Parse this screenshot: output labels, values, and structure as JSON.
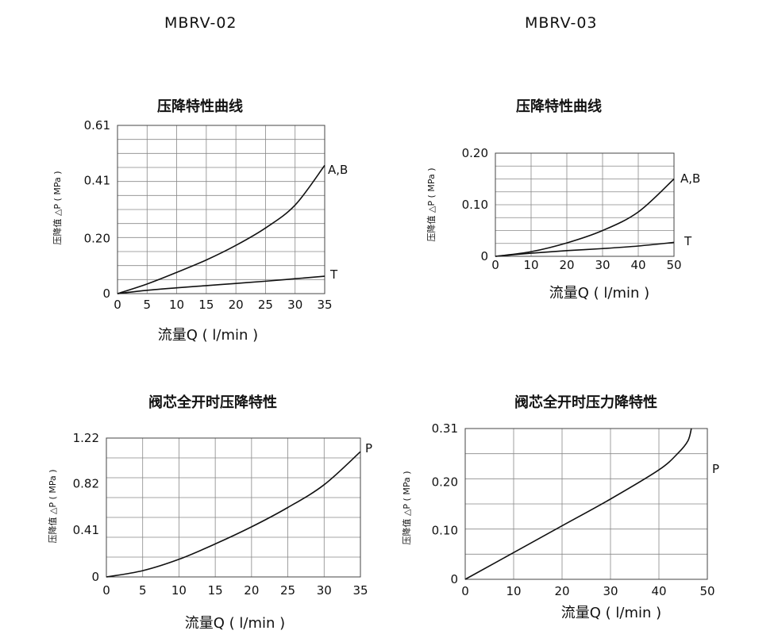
{
  "models": {
    "left": "MBRV-02",
    "right": "MBRV-03"
  },
  "chart_data": [
    {
      "type": "line",
      "title": "压降特性曲线",
      "xlabel": "流量Q ( l/min )",
      "ylabel": "压降值 △P ( MPa )",
      "xlim": [
        0,
        35
      ],
      "ylim": [
        0,
        0.61
      ],
      "x_ticks": [
        "0",
        "5",
        "10",
        "15",
        "20",
        "25",
        "30",
        "35"
      ],
      "y_ticks": [
        {
          "value": 0,
          "label": "0"
        },
        {
          "value": 0.2,
          "label": "0.20"
        },
        {
          "value": 0.41,
          "label": "0.41"
        },
        {
          "value": 0.61,
          "label": "0.61"
        }
      ],
      "grid": true,
      "series": [
        {
          "name": "A,B",
          "x": [
            0,
            5,
            10,
            15,
            20,
            25,
            30,
            35
          ],
          "y": [
            0,
            0.035,
            0.077,
            0.122,
            0.175,
            0.238,
            0.321,
            0.465
          ]
        },
        {
          "name": "T",
          "x": [
            0,
            5,
            10,
            15,
            20,
            25,
            30,
            35
          ],
          "y": [
            0,
            0.012,
            0.021,
            0.029,
            0.037,
            0.045,
            0.054,
            0.063
          ]
        }
      ]
    },
    {
      "type": "line",
      "title": "压降特性曲线",
      "xlabel": "流量Q ( l/min )",
      "ylabel": "压降值 △P ( MPa )",
      "xlim": [
        0,
        50
      ],
      "ylim": [
        0,
        0.2
      ],
      "x_ticks": [
        "0",
        "10",
        "20",
        "30",
        "40",
        "50"
      ],
      "y_ticks": [
        {
          "value": 0,
          "label": "0"
        },
        {
          "value": 0.1,
          "label": "0.10"
        },
        {
          "value": 0.2,
          "label": "0.20"
        }
      ],
      "grid": true,
      "series": [
        {
          "name": "A,B",
          "x": [
            0,
            10,
            20,
            30,
            40,
            50
          ],
          "y": [
            0,
            0.009,
            0.026,
            0.05,
            0.086,
            0.15
          ]
        },
        {
          "name": "T",
          "x": [
            0,
            10,
            20,
            30,
            40,
            50
          ],
          "y": [
            0,
            0.006,
            0.011,
            0.015,
            0.02,
            0.027
          ]
        }
      ]
    },
    {
      "type": "line",
      "title": "阀芯全开时压降特性",
      "xlabel": "流量Q ( l/min )",
      "ylabel": "压降值 △P ( MPa )",
      "xlim": [
        0,
        35
      ],
      "ylim": [
        0,
        1.22
      ],
      "x_ticks": [
        "0",
        "5",
        "10",
        "15",
        "20",
        "25",
        "30",
        "35"
      ],
      "y_ticks": [
        {
          "value": 0,
          "label": "0"
        },
        {
          "value": 0.41,
          "label": "0.41"
        },
        {
          "value": 0.82,
          "label": "0.82"
        },
        {
          "value": 1.22,
          "label": "1.22"
        }
      ],
      "grid": true,
      "series": [
        {
          "name": "P",
          "x": [
            0,
            5,
            10,
            15,
            20,
            25,
            30,
            35
          ],
          "y": [
            0,
            0.055,
            0.155,
            0.29,
            0.44,
            0.61,
            0.81,
            1.1
          ]
        }
      ]
    },
    {
      "type": "line",
      "title": "阀芯全开时压力降特性",
      "xlabel": "流量Q ( l/min )",
      "ylabel": "压降值 △P ( MPa )",
      "xlim": [
        0,
        50
      ],
      "ylim": [
        0,
        0.31
      ],
      "x_ticks": [
        "0",
        "10",
        "20",
        "30",
        "40",
        "50"
      ],
      "y_ticks": [
        {
          "value": 0,
          "label": "0"
        },
        {
          "value": 0.1,
          "label": "0.10"
        },
        {
          "value": 0.2,
          "label": "0.20"
        },
        {
          "value": 0.31,
          "label": "0.31"
        }
      ],
      "grid": true,
      "series": [
        {
          "name": "P",
          "x": [
            0,
            10,
            20,
            30,
            40,
            44,
            46,
            46.7
          ],
          "y": [
            0,
            0.055,
            0.11,
            0.165,
            0.225,
            0.26,
            0.285,
            0.31
          ]
        }
      ]
    }
  ]
}
